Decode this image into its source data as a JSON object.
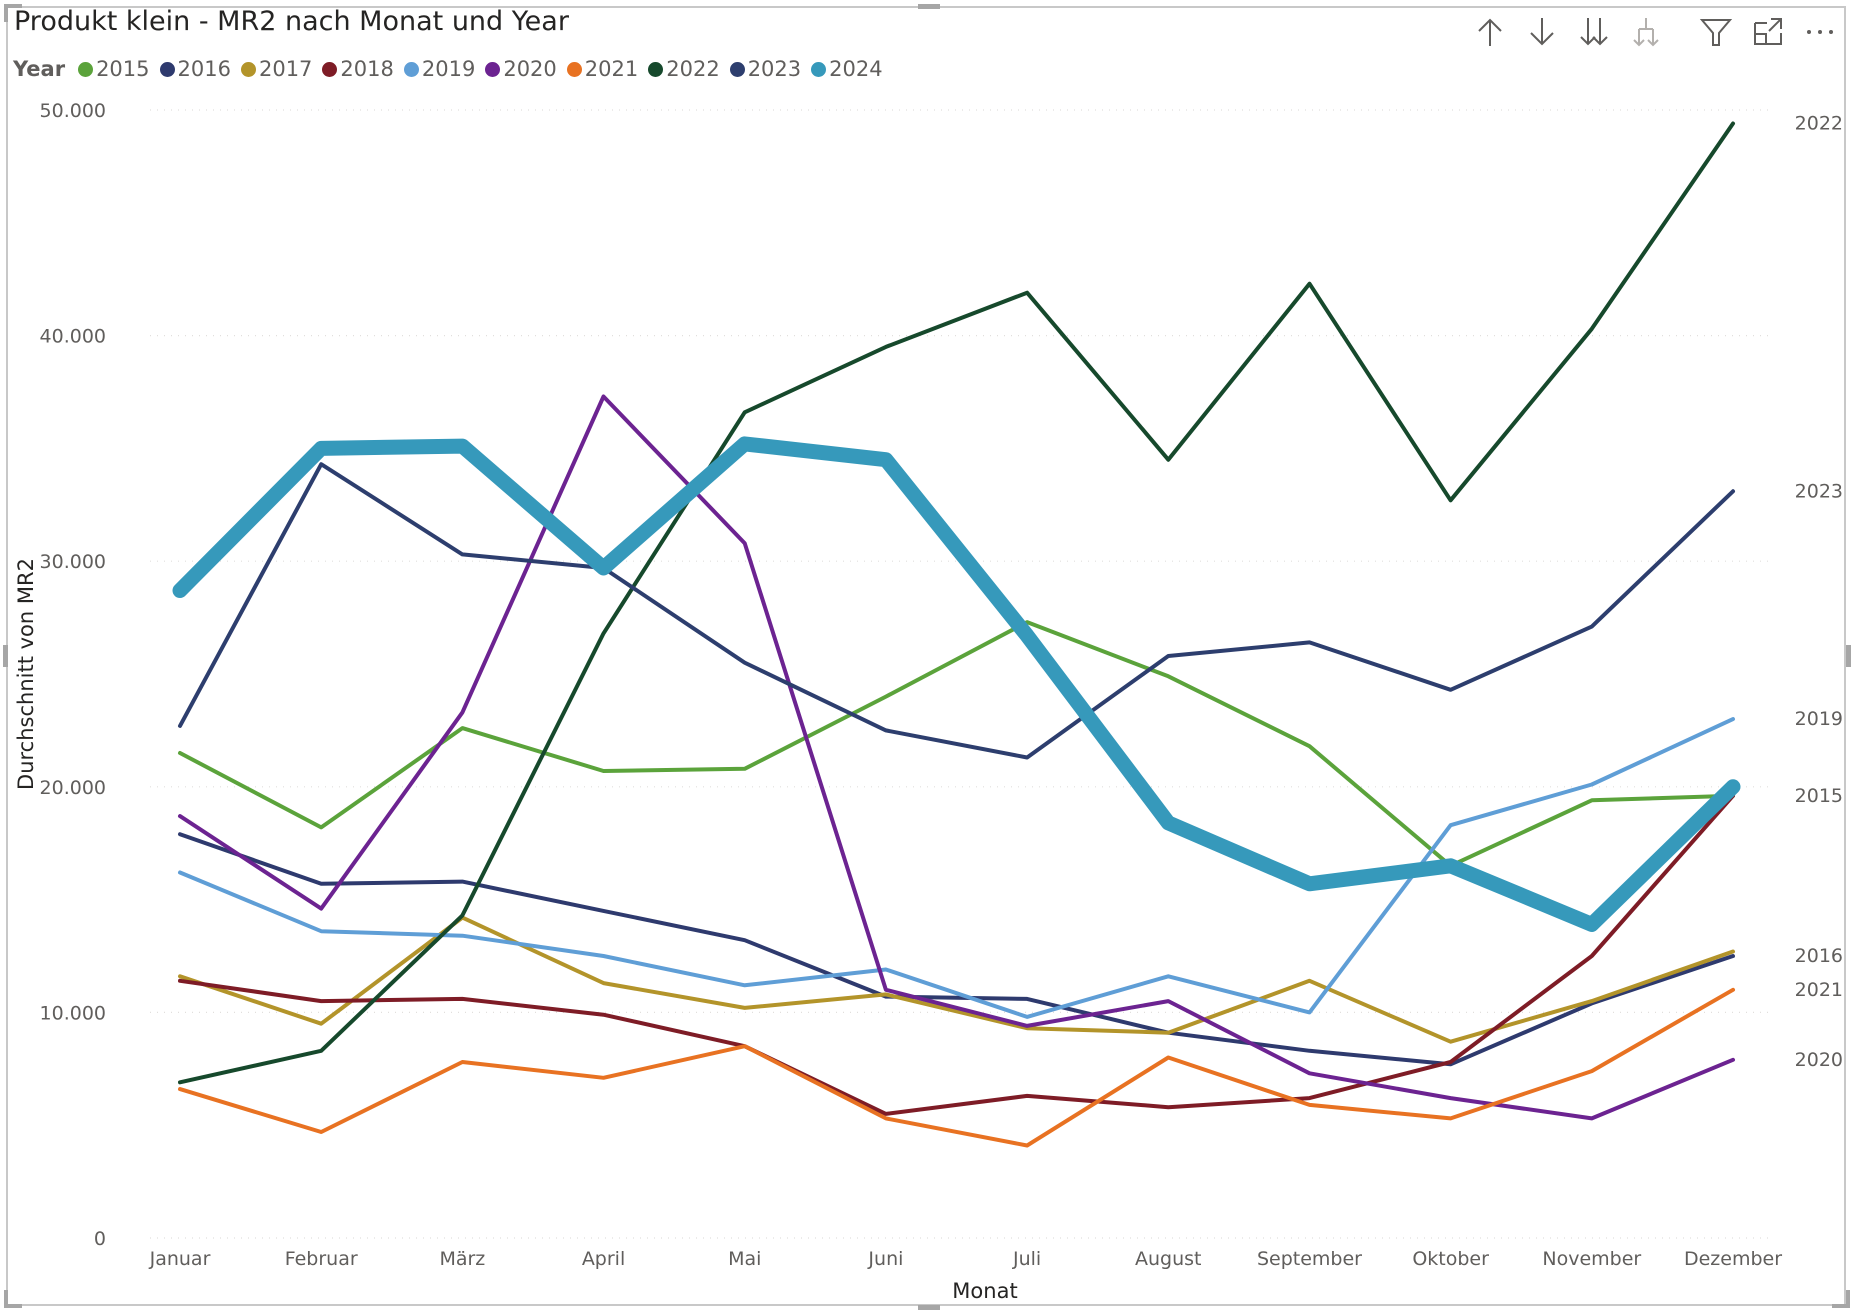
{
  "visual": {
    "title": "Produkt klein - MR2 nach Monat und Year",
    "toolbar": [
      {
        "name": "drill-up-icon",
        "label": "Drill up",
        "enabled": true
      },
      {
        "name": "drill-down-icon",
        "label": "Drill down",
        "enabled": true
      },
      {
        "name": "expand-all-icon",
        "label": "Go to next level",
        "enabled": true
      },
      {
        "name": "expand-hierarchy-icon",
        "label": "Expand all down one level",
        "enabled": false
      },
      {
        "name": "filter-icon",
        "label": "Filter",
        "enabled": true
      },
      {
        "name": "focus-mode-icon",
        "label": "Focus mode",
        "enabled": true
      },
      {
        "name": "more-options-icon",
        "label": "More options",
        "enabled": true
      }
    ]
  },
  "chart_data": {
    "type": "line",
    "title": "Produkt klein - MR2 nach Monat und Year",
    "xlabel": "Monat",
    "ylabel": "Durchschnitt von MR2",
    "legend_title": "Year",
    "legend_position": "top-left",
    "grid": true,
    "ylim": [
      0,
      50000
    ],
    "yticks": [
      0,
      10000,
      20000,
      30000,
      40000,
      50000
    ],
    "ytick_labels": [
      "0",
      "10.000",
      "20.000",
      "30.000",
      "40.000",
      "50.000"
    ],
    "categories": [
      "Januar",
      "Februar",
      "März",
      "April",
      "Mai",
      "Juni",
      "Juli",
      "August",
      "September",
      "Oktober",
      "November",
      "Dezember"
    ],
    "series": [
      {
        "name": "2015",
        "color": "#5BA33B",
        "highlight": false,
        "end_label": "2015",
        "values": [
          21500,
          18200,
          22600,
          20700,
          20800,
          24000,
          27300,
          24900,
          21800,
          16500,
          19400,
          19600
        ]
      },
      {
        "name": "2016",
        "color": "#2E3A6E",
        "highlight": false,
        "end_label": "2016",
        "values": [
          17900,
          15700,
          15800,
          14500,
          13200,
          10700,
          10600,
          9100,
          8300,
          7700,
          10400,
          12500
        ]
      },
      {
        "name": "2017",
        "color": "#B3942A",
        "highlight": false,
        "end_label": "",
        "values": [
          11600,
          9500,
          14200,
          11300,
          10200,
          10800,
          9300,
          9100,
          11400,
          8700,
          10500,
          12700
        ]
      },
      {
        "name": "2018",
        "color": "#7E1C26",
        "highlight": false,
        "end_label": "",
        "values": [
          11400,
          10500,
          10600,
          9900,
          8500,
          5500,
          6300,
          5800,
          6200,
          7800,
          12500,
          19600
        ]
      },
      {
        "name": "2019",
        "color": "#5F9ED6",
        "highlight": false,
        "end_label": "2019",
        "values": [
          16200,
          13600,
          13400,
          12500,
          11200,
          11900,
          9800,
          11600,
          10000,
          18300,
          20100,
          23000
        ]
      },
      {
        "name": "2020",
        "color": "#6C2391",
        "highlight": false,
        "end_label": "2020",
        "values": [
          18700,
          14600,
          23300,
          37300,
          30800,
          11000,
          9400,
          10500,
          7300,
          6200,
          5300,
          7900
        ]
      },
      {
        "name": "2021",
        "color": "#E87222",
        "highlight": false,
        "end_label": "2021",
        "values": [
          6600,
          4700,
          7800,
          7100,
          8500,
          5300,
          4100,
          8000,
          5900,
          5300,
          7400,
          11000
        ]
      },
      {
        "name": "2022",
        "color": "#16492C",
        "highlight": false,
        "end_label": "2022",
        "values": [
          6900,
          8300,
          14300,
          26800,
          36600,
          39500,
          41900,
          34500,
          42300,
          32700,
          40300,
          49400
        ]
      },
      {
        "name": "2023",
        "color": "#2D3E6E",
        "highlight": false,
        "end_label": "2023",
        "values": [
          22700,
          34300,
          30300,
          29700,
          25500,
          22500,
          21300,
          25800,
          26400,
          24300,
          27100,
          33100
        ]
      },
      {
        "name": "2024",
        "color": "#3699BB",
        "highlight": true,
        "end_label": "",
        "values": [
          28700,
          35000,
          35100,
          29700,
          35200,
          34500,
          26700,
          18400,
          15700,
          16500,
          13900,
          20000
        ]
      }
    ]
  }
}
